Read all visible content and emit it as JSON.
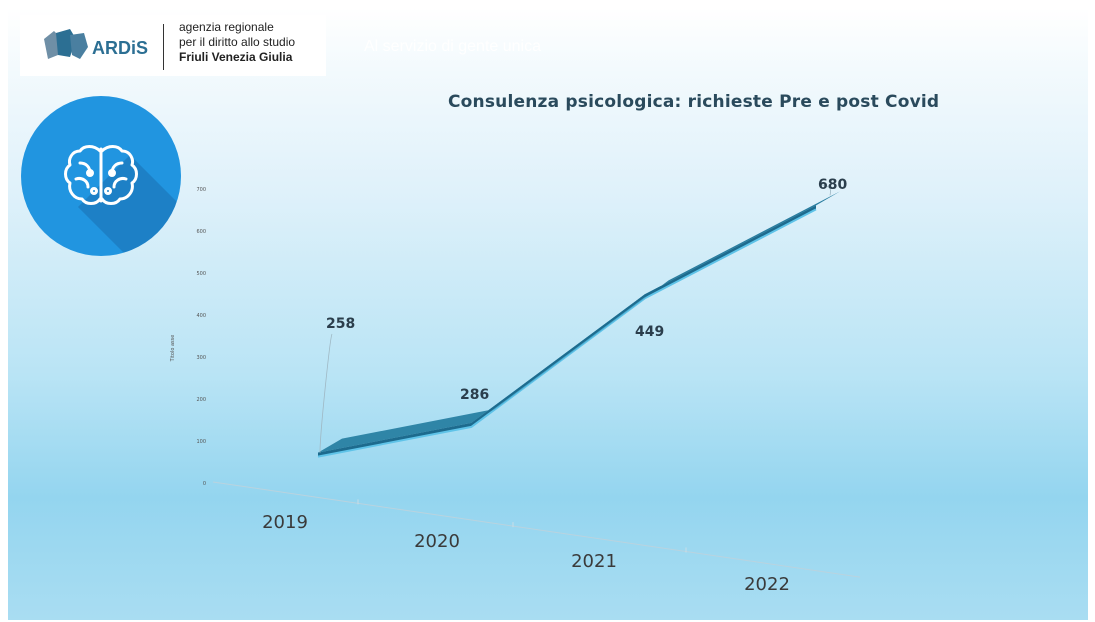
{
  "header": {
    "logo_word": "ARDiS",
    "org_line1": "agenzia regionale",
    "org_line2": "per il diritto allo studio",
    "org_line3": "Friuli Venezia Giulia",
    "tagline": "Al servizio di gente unica"
  },
  "icons": {
    "logo": "ardis-logo-icon",
    "topic": "brain-icon"
  },
  "colors": {
    "ribbon_top": "#2f85a7",
    "ribbon_edge": "#1d6b8e",
    "ribbon_highlight": "#5fc3e8",
    "circle": "#2195e0"
  },
  "chart_data": {
    "type": "line",
    "title": "Consulenza psicologica: richieste Pre e post Covid",
    "ylabel": "Titolo asse",
    "categories": [
      "2019",
      "2020",
      "2021",
      "2022"
    ],
    "values": [
      258,
      286,
      449,
      680
    ],
    "ylim": [
      0,
      700
    ],
    "yticks": [
      "0",
      "100",
      "200",
      "300",
      "400",
      "500",
      "600",
      "700"
    ],
    "three_d": true
  }
}
